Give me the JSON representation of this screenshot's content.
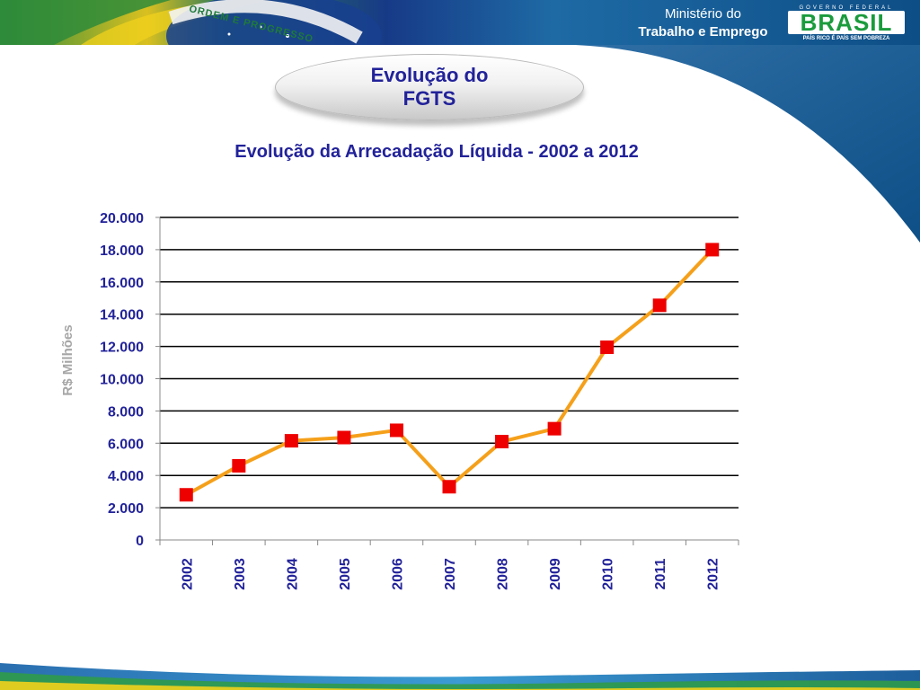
{
  "header": {
    "ministry_line1": "Ministério do",
    "ministry_line2": "Trabalho e Emprego",
    "flag_motto": "ORDEM E PROGRESSO",
    "logo": {
      "top_text": "GOVERNO FEDERAL",
      "word": "BRASIL",
      "tagline": "PAÍS RICO É PAÍS SEM POBREZA"
    }
  },
  "slide_title": "Evolução do FGTS",
  "chart_data": {
    "type": "line",
    "title": "Evolução da Arrecadação Líquida - 2002 a 2012",
    "xlabel": "",
    "ylabel": "R$ Milhões",
    "categories": [
      "2002",
      "2003",
      "2004",
      "2005",
      "2006",
      "2007",
      "2008",
      "2009",
      "2010",
      "2011",
      "2012"
    ],
    "series": [
      {
        "values": [
          2800,
          4600,
          6150,
          6350,
          6800,
          3300,
          6100,
          6900,
          11950,
          14550,
          18000
        ]
      }
    ],
    "ylim": [
      0,
      20000
    ],
    "yticks": [
      0,
      2000,
      4000,
      6000,
      8000,
      10000,
      12000,
      14000,
      16000,
      18000,
      20000
    ],
    "ytick_labels": [
      "0",
      "2.000",
      "4.000",
      "6.000",
      "8.000",
      "10.000",
      "12.000",
      "14.000",
      "16.000",
      "18.000",
      "20.000"
    ],
    "grid": true,
    "legend": "none",
    "colors": {
      "line": "#f5a01a",
      "marker": "#ee0000",
      "text": "#22229a",
      "grid": "#000000",
      "ylabel": "#a6a6a6"
    }
  }
}
